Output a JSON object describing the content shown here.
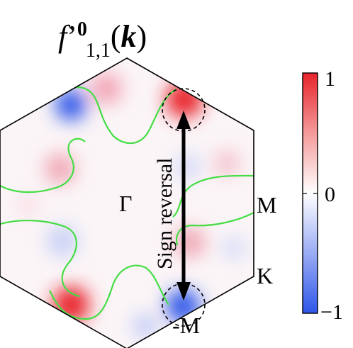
{
  "title": {
    "f": "f",
    "prime": "’",
    "superscript": "0",
    "subscript": "1,1",
    "open_paren": "(",
    "k": "k",
    "close_paren": ")"
  },
  "point_labels": {
    "gamma": "Γ",
    "m": "M",
    "k": "K",
    "minus_m": "-M"
  },
  "annotation": {
    "text": "Sign reversal"
  },
  "colorbar": {
    "ticks": [
      "1",
      "0",
      "−1"
    ],
    "max": 1,
    "min": -1,
    "colors": {
      "positive": "#e8242b",
      "zero": "#ffffff",
      "negative": "#2e56e8"
    }
  },
  "colors": {
    "fermi_surface": "#44dd44",
    "hexagon_edge": "#000000",
    "arrow": "#000000",
    "dashed_circles": "#000000"
  }
}
